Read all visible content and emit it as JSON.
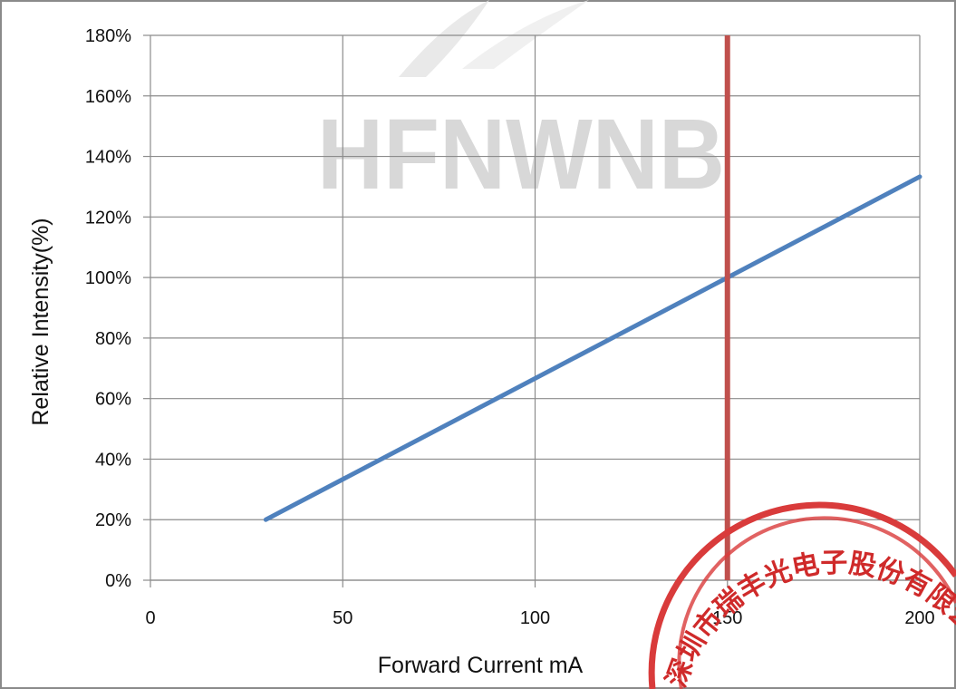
{
  "watermark": {
    "text": "HFNWNB",
    "color": "#d8d8d8"
  },
  "stamp": {
    "text": "深圳市瑞丰光电子股份有限公司",
    "color": "#cf2a2a"
  },
  "chart_data": {
    "type": "line",
    "title": "",
    "xlabel": "Forward Current    mA",
    "ylabel": "Relative Intensity(%)",
    "x_ticks": [
      0,
      50,
      100,
      150,
      200
    ],
    "x_tick_labels": [
      "0",
      "50",
      "100",
      "150",
      "200"
    ],
    "y_ticks": [
      0,
      20,
      40,
      60,
      80,
      100,
      120,
      140,
      160,
      180
    ],
    "y_tick_labels": [
      "0%",
      "20%",
      "40%",
      "60%",
      "80%",
      "100%",
      "120%",
      "140%",
      "160%",
      "180%"
    ],
    "xlim": [
      0,
      200
    ],
    "ylim": [
      0,
      180
    ],
    "grid": true,
    "legend": "none",
    "series": [
      {
        "color": "#4f81bd",
        "x": [
          30,
          200
        ],
        "y": [
          20,
          133.3
        ]
      }
    ],
    "reference_lines": [
      {
        "orientation": "vertical",
        "x": 150,
        "color": "#c0504d"
      }
    ]
  }
}
